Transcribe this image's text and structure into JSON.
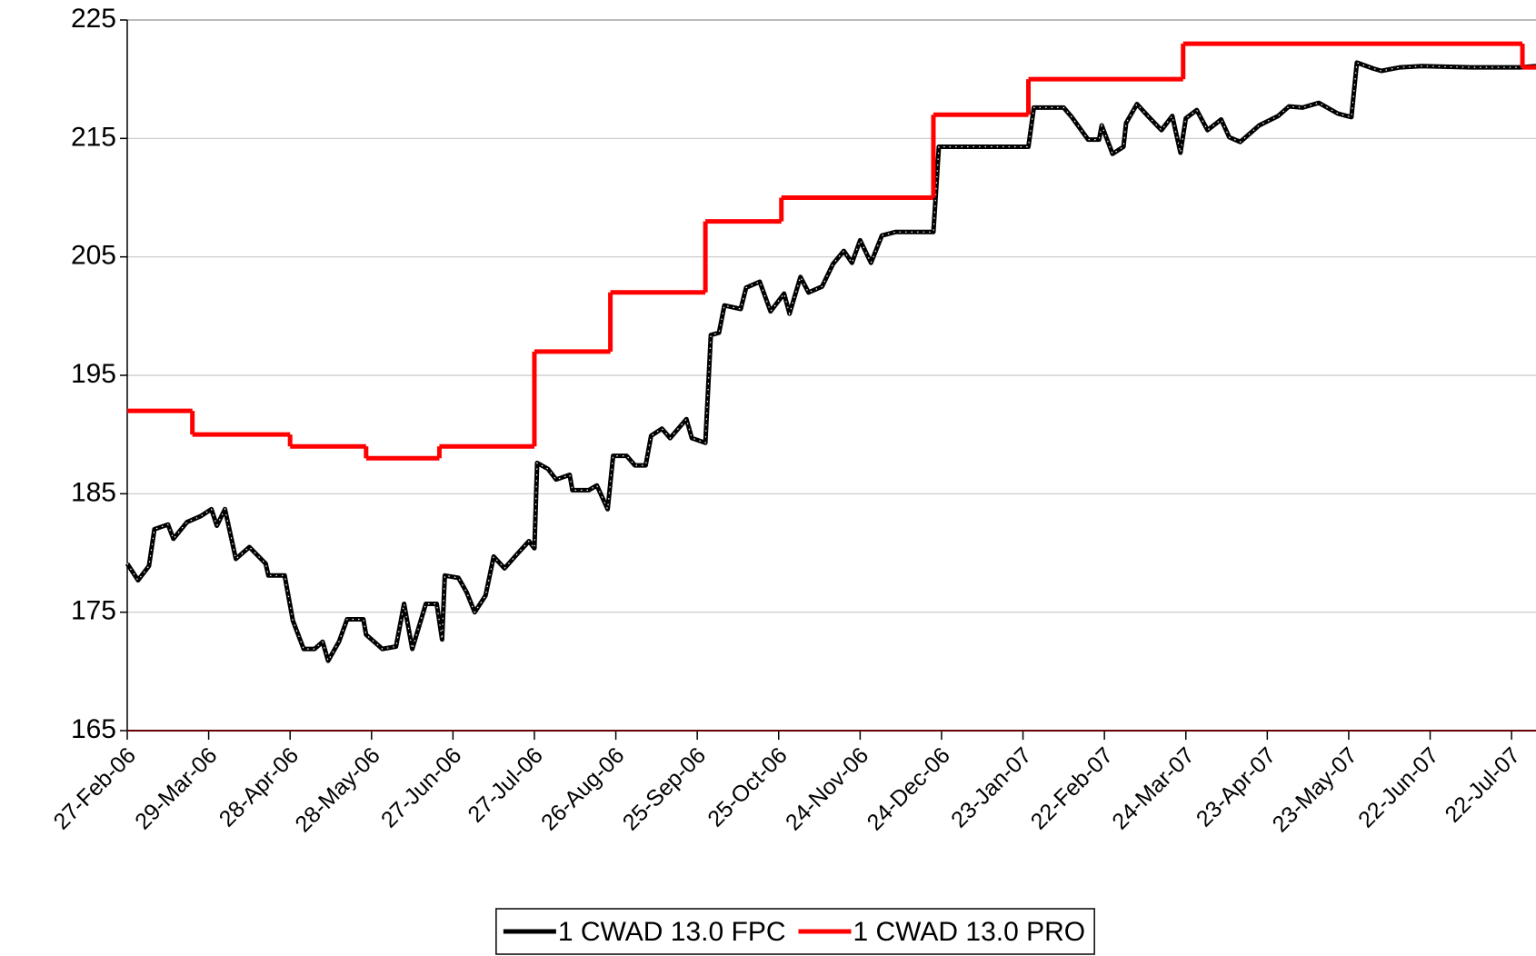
{
  "chart_data": {
    "type": "line",
    "xlim": [
      "2006-02-27",
      "2007-07-31"
    ],
    "ylim": [
      165,
      225
    ],
    "yticks": [
      165,
      175,
      185,
      195,
      205,
      215,
      225
    ],
    "xticks": [
      {
        "value": "2006-02-27",
        "label": "27-Feb-06"
      },
      {
        "value": "2006-03-29",
        "label": "29-Mar-06"
      },
      {
        "value": "2006-04-28",
        "label": "28-Apr-06"
      },
      {
        "value": "2006-05-28",
        "label": "28-May-06"
      },
      {
        "value": "2006-06-27",
        "label": "27-Jun-06"
      },
      {
        "value": "2006-07-27",
        "label": "27-Jul-06"
      },
      {
        "value": "2006-08-26",
        "label": "26-Aug-06"
      },
      {
        "value": "2006-09-25",
        "label": "25-Sep-06"
      },
      {
        "value": "2006-10-25",
        "label": "25-Oct-06"
      },
      {
        "value": "2006-11-24",
        "label": "24-Nov-06"
      },
      {
        "value": "2006-12-24",
        "label": "24-Dec-06"
      },
      {
        "value": "2007-01-23",
        "label": "23-Jan-07"
      },
      {
        "value": "2007-02-22",
        "label": "22-Feb-07"
      },
      {
        "value": "2007-03-24",
        "label": "24-Mar-07"
      },
      {
        "value": "2007-04-23",
        "label": "23-Apr-07"
      },
      {
        "value": "2007-05-23",
        "label": "23-May-07"
      },
      {
        "value": "2007-06-22",
        "label": "22-Jun-07"
      },
      {
        "value": "2007-07-22",
        "label": "22-Jul-07"
      }
    ],
    "grid": true,
    "legend": "bottom",
    "series": [
      {
        "name": "1 CWAD 13.0 FPC",
        "color": "#000000",
        "x": [
          "2006-02-27",
          "2006-03-03",
          "2006-03-07",
          "2006-03-09",
          "2006-03-14",
          "2006-03-16",
          "2006-03-21",
          "2006-03-26",
          "2006-03-30",
          "2006-04-01",
          "2006-04-04",
          "2006-04-08",
          "2006-04-13",
          "2006-04-19",
          "2006-04-20",
          "2006-04-26",
          "2006-04-29",
          "2006-05-03",
          "2006-05-07",
          "2006-05-10",
          "2006-05-12",
          "2006-05-16",
          "2006-05-19",
          "2006-05-25",
          "2006-05-26",
          "2006-06-01",
          "2006-06-06",
          "2006-06-09",
          "2006-06-12",
          "2006-06-17",
          "2006-06-21",
          "2006-06-23",
          "2006-06-24",
          "2006-06-29",
          "2006-07-02",
          "2006-07-05",
          "2006-07-09",
          "2006-07-12",
          "2006-07-16",
          "2006-07-21",
          "2006-07-25",
          "2006-07-27",
          "2006-07-28",
          "2006-08-01",
          "2006-08-04",
          "2006-08-09",
          "2006-08-10",
          "2006-08-16",
          "2006-08-19",
          "2006-08-23",
          "2006-08-25",
          "2006-08-30",
          "2006-09-02",
          "2006-09-06",
          "2006-09-08",
          "2006-09-12",
          "2006-09-15",
          "2006-09-21",
          "2006-09-23",
          "2006-09-28",
          "2006-09-30",
          "2006-10-03",
          "2006-10-05",
          "2006-10-11",
          "2006-10-13",
          "2006-10-18",
          "2006-10-22",
          "2006-10-27",
          "2006-10-29",
          "2006-11-02",
          "2006-11-05",
          "2006-11-10",
          "2006-11-14",
          "2006-11-18",
          "2006-11-21",
          "2006-11-24",
          "2006-11-28",
          "2006-12-02",
          "2006-12-07",
          "2006-12-21",
          "2006-12-23",
          "2007-01-25",
          "2007-01-27",
          "2007-02-07",
          "2007-02-10",
          "2007-02-16",
          "2007-02-20",
          "2007-02-21",
          "2007-02-25",
          "2007-03-01",
          "2007-03-02",
          "2007-03-06",
          "2007-03-10",
          "2007-03-15",
          "2007-03-19",
          "2007-03-22",
          "2007-03-24",
          "2007-03-28",
          "2007-04-01",
          "2007-04-06",
          "2007-04-09",
          "2007-04-13",
          "2007-04-20",
          "2007-04-27",
          "2007-05-01",
          "2007-05-06",
          "2007-05-12",
          "2007-05-19",
          "2007-05-24",
          "2007-05-26",
          "2007-06-01",
          "2007-06-04",
          "2007-06-11",
          "2007-06-19",
          "2007-07-07",
          "2007-07-25",
          "2007-07-31"
        ],
        "values": [
          179.1,
          177.7,
          178.9,
          182.0,
          182.4,
          181.2,
          182.6,
          183.1,
          183.7,
          182.3,
          183.7,
          179.5,
          180.5,
          179.1,
          178.1,
          178.1,
          174.3,
          171.9,
          171.9,
          172.5,
          170.9,
          172.5,
          174.4,
          174.4,
          173.1,
          171.9,
          172.1,
          175.7,
          171.9,
          175.7,
          175.7,
          172.7,
          178.1,
          177.9,
          176.7,
          175.0,
          176.4,
          179.7,
          178.7,
          180.0,
          181.0,
          180.4,
          187.6,
          187.1,
          186.2,
          186.6,
          185.3,
          185.3,
          185.7,
          183.7,
          188.2,
          188.2,
          187.4,
          187.4,
          189.9,
          190.5,
          189.7,
          191.3,
          189.7,
          189.3,
          198.4,
          198.6,
          200.9,
          200.6,
          202.4,
          202.9,
          200.4,
          201.9,
          200.2,
          203.3,
          202.0,
          202.5,
          204.4,
          205.5,
          204.5,
          206.4,
          204.5,
          206.8,
          207.1,
          207.1,
          214.3,
          214.3,
          217.6,
          217.6,
          216.8,
          214.9,
          214.9,
          216.1,
          213.7,
          214.3,
          216.3,
          217.9,
          216.9,
          215.7,
          216.9,
          213.8,
          216.7,
          217.4,
          215.7,
          216.6,
          215.1,
          214.7,
          216.1,
          216.9,
          217.7,
          217.6,
          218.0,
          217.1,
          216.8,
          221.4,
          220.9,
          220.7,
          221.0,
          221.1,
          221.0,
          221.0,
          221.1
        ]
      },
      {
        "name": "1 CWAD 13.0 PRO",
        "color": "#ff0000",
        "step": true,
        "x": [
          "2006-02-27",
          "2006-03-23",
          "2006-04-28",
          "2006-05-26",
          "2006-06-22",
          "2006-07-27",
          "2006-08-24",
          "2006-09-28",
          "2006-10-26",
          "2006-12-21",
          "2007-01-25",
          "2007-03-23",
          "2007-07-26"
        ],
        "values": [
          192,
          190,
          189,
          188,
          189,
          197,
          202,
          208,
          210,
          217,
          220,
          223,
          221
        ]
      }
    ]
  }
}
